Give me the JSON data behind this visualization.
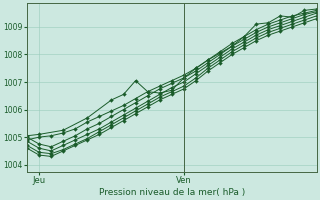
{
  "title": "",
  "xlabel": "Pression niveau de la mer( hPa )",
  "ylabel": "",
  "bg_color": "#cce8e0",
  "grid_color": "#99ccbb",
  "line_color": "#1a5c2a",
  "ylim": [
    1003.75,
    1009.85
  ],
  "xlim": [
    0,
    48
  ],
  "xtick_positions": [
    2,
    26
  ],
  "xtick_labels": [
    "Jeu",
    "Ven"
  ],
  "ytick_positions": [
    1004,
    1005,
    1006,
    1007,
    1008,
    1009
  ],
  "vline_x": 26,
  "lines": [
    {
      "x": [
        0,
        2,
        4,
        6,
        8,
        10,
        12,
        14,
        16,
        18,
        20,
        22,
        24,
        26,
        28,
        30,
        32,
        34,
        36,
        38,
        40,
        42,
        44,
        46,
        48
      ],
      "y": [
        1004.9,
        1005.0,
        1005.05,
        1005.15,
        1005.3,
        1005.55,
        1005.75,
        1005.95,
        1006.15,
        1006.4,
        1006.65,
        1006.85,
        1007.05,
        1007.25,
        1007.5,
        1007.8,
        1008.1,
        1008.4,
        1008.65,
        1008.9,
        1009.1,
        1009.25,
        1009.4,
        1009.5,
        1009.6
      ]
    },
    {
      "x": [
        0,
        2,
        4,
        6,
        8,
        10,
        12,
        14,
        16,
        18,
        20,
        22,
        24,
        26,
        28,
        30,
        32,
        34,
        36,
        38,
        40,
        42,
        44,
        46,
        48
      ],
      "y": [
        1005.0,
        1004.75,
        1004.65,
        1004.85,
        1005.05,
        1005.3,
        1005.5,
        1005.75,
        1006.0,
        1006.25,
        1006.5,
        1006.75,
        1006.95,
        1007.15,
        1007.4,
        1007.7,
        1008.0,
        1008.3,
        1008.55,
        1008.8,
        1009.0,
        1009.15,
        1009.3,
        1009.45,
        1009.55
      ]
    },
    {
      "x": [
        0,
        2,
        4,
        6,
        8,
        10,
        12,
        14,
        16,
        18,
        20,
        22,
        24,
        26,
        28,
        30,
        32,
        34,
        36,
        38,
        40,
        42,
        44,
        46,
        48
      ],
      "y": [
        1004.85,
        1004.6,
        1004.5,
        1004.7,
        1004.9,
        1005.1,
        1005.3,
        1005.55,
        1005.8,
        1006.05,
        1006.3,
        1006.55,
        1006.8,
        1007.0,
        1007.3,
        1007.6,
        1007.9,
        1008.2,
        1008.45,
        1008.7,
        1008.9,
        1009.05,
        1009.2,
        1009.35,
        1009.5
      ]
    },
    {
      "x": [
        0,
        2,
        4,
        6,
        8,
        10,
        12,
        14,
        16,
        18,
        20,
        22,
        24,
        26,
        28,
        30,
        32,
        34,
        36,
        38,
        40,
        42,
        44,
        46,
        48
      ],
      "y": [
        1004.7,
        1004.45,
        1004.4,
        1004.55,
        1004.75,
        1004.95,
        1005.2,
        1005.45,
        1005.7,
        1005.95,
        1006.2,
        1006.45,
        1006.65,
        1006.85,
        1007.15,
        1007.5,
        1007.8,
        1008.1,
        1008.35,
        1008.6,
        1008.8,
        1008.95,
        1009.1,
        1009.25,
        1009.4
      ]
    },
    {
      "x": [
        0,
        2,
        4,
        6,
        8,
        10,
        12,
        14,
        16,
        18,
        20,
        22,
        24,
        26,
        28,
        30,
        32,
        34,
        36,
        38,
        40,
        42,
        44,
        46,
        48
      ],
      "y": [
        1004.6,
        1004.35,
        1004.3,
        1004.5,
        1004.7,
        1004.9,
        1005.1,
        1005.35,
        1005.6,
        1005.85,
        1006.1,
        1006.35,
        1006.55,
        1006.75,
        1007.05,
        1007.4,
        1007.7,
        1008.0,
        1008.25,
        1008.5,
        1008.7,
        1008.85,
        1009.0,
        1009.15,
        1009.3
      ]
    },
    {
      "x": [
        0,
        2,
        6,
        10,
        14,
        16,
        18,
        20,
        22,
        24,
        26,
        28,
        30,
        32,
        34,
        36,
        38,
        40,
        42,
        44,
        46,
        48
      ],
      "y": [
        1005.05,
        1005.1,
        1005.25,
        1005.7,
        1006.35,
        1006.55,
        1007.05,
        1006.65,
        1006.6,
        1006.7,
        1007.15,
        1007.5,
        1007.8,
        1008.05,
        1008.3,
        1008.65,
        1009.1,
        1009.15,
        1009.4,
        1009.35,
        1009.6,
        1009.65
      ]
    }
  ]
}
